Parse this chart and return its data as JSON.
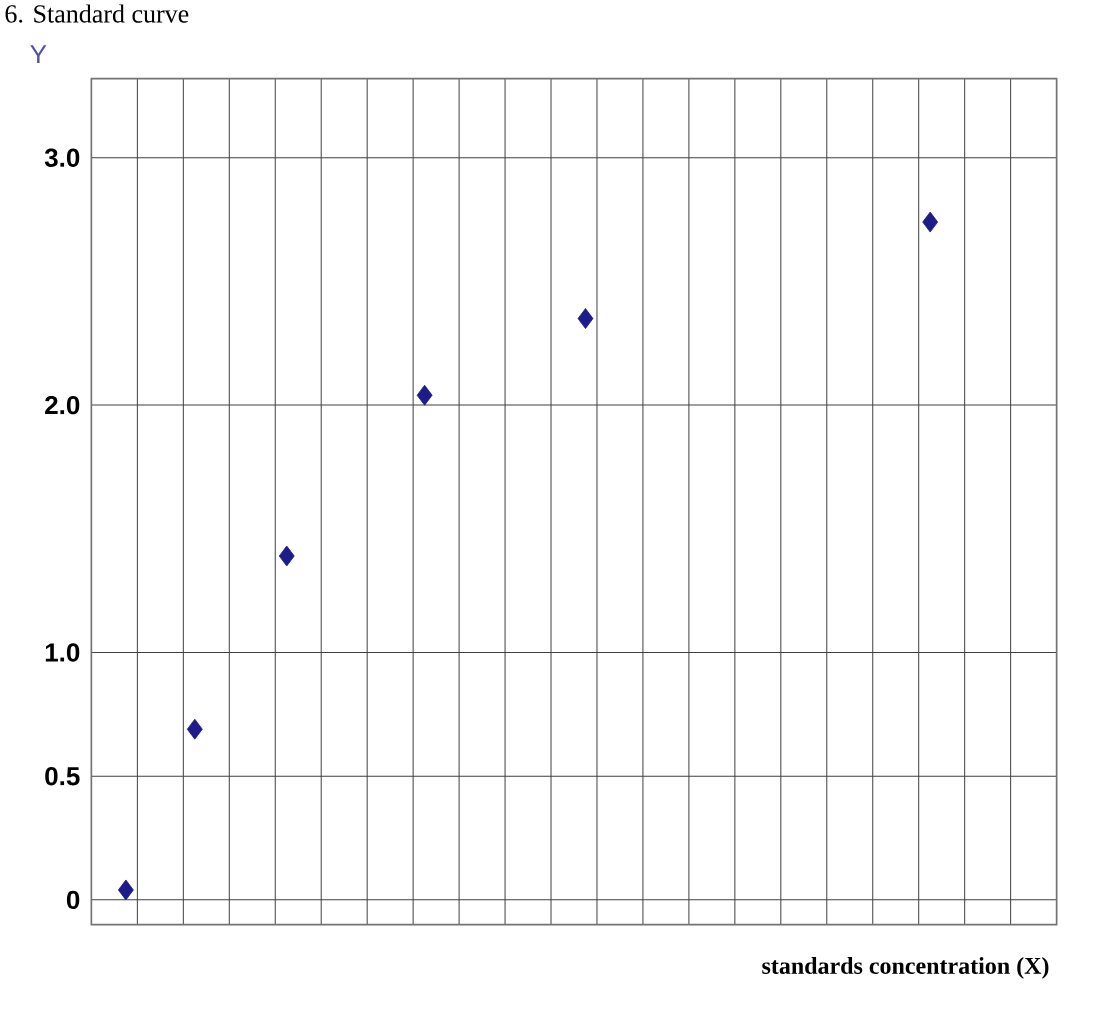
{
  "chart_data": {
    "type": "scatter",
    "title": "6. Standard curve",
    "xlabel": "standards concentration (X)",
    "ylabel": "Y",
    "categories": [
      null,
      null,
      null,
      null,
      null,
      null,
      null,
      null,
      null,
      null,
      null,
      null,
      null,
      null,
      null,
      null,
      null,
      null,
      null,
      null,
      null,
      null,
      null,
      null,
      null,
      null,
      null,
      null,
      null,
      null,
      null,
      null,
      null,
      null,
      null,
      null,
      null,
      null,
      null,
      null,
      null,
      null
    ],
    "values": [
      null,
      0.04,
      null,
      null,
      0.69,
      null,
      null,
      null,
      1.39,
      null,
      null,
      null,
      null,
      null,
      2.04,
      null,
      null,
      null,
      null,
      null,
      null,
      2.35,
      null,
      null,
      null,
      null,
      null,
      null,
      null,
      null,
      null,
      null,
      null,
      null,
      null,
      null,
      2.74,
      null,
      null,
      null,
      null,
      null
    ],
    "color": "#1c1c8a",
    "marker": "diamond",
    "ylim": [
      -0.1,
      3.32
    ],
    "yticks": [
      {
        "value": 0,
        "label": "0"
      },
      {
        "value": 0.5,
        "label": "0.5"
      },
      {
        "value": 1,
        "label": "1.0"
      },
      {
        "value": 2,
        "label": "2.0"
      },
      {
        "value": 3,
        "label": "3.0"
      }
    ],
    "tick_labels": "y",
    "grid": true
  }
}
